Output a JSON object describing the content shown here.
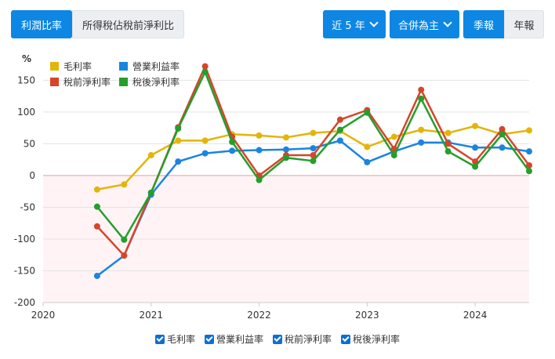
{
  "toolbar": {
    "tab_active": "利潤比率",
    "tab_inactive": "所得稅佔稅前淨利比",
    "range_label": "近 5 年",
    "basis_label": "合併為主",
    "quarterly_label": "季報",
    "annual_label": "年報"
  },
  "colors": {
    "accent": "#0d87e3",
    "zero_line": "#f0a5a5",
    "negative_fill": "#fff3f5"
  },
  "chart_data": {
    "type": "line",
    "unit_label": "%",
    "y_ticks": [
      "150",
      "100",
      "50",
      "0",
      "-50",
      "-100",
      "-150",
      "-200"
    ],
    "x_ticks": [
      "2020",
      "2021",
      "2022",
      "2023",
      "2024"
    ],
    "ylim": [
      -200,
      190
    ],
    "xlim": [
      2020.0,
      2024.5
    ],
    "legend_position": "top-left",
    "x": [
      2020.5,
      2020.75,
      2021.0,
      2021.25,
      2021.5,
      2021.75,
      2022.0,
      2022.25,
      2022.5,
      2022.75,
      2023.0,
      2023.25,
      2023.5,
      2023.75,
      2024.0,
      2024.25,
      2024.5
    ],
    "series": [
      {
        "name": "毛利率",
        "color": "#e3b50b",
        "values": [
          -22,
          -14,
          32,
          55,
          55,
          65,
          63,
          60,
          67,
          70,
          45,
          61,
          72,
          67,
          78,
          65,
          71
        ]
      },
      {
        "name": "營業利益率",
        "color": "#1a84e0",
        "values": [
          -158,
          -126,
          -30,
          22,
          35,
          39,
          40,
          41,
          43,
          55,
          21,
          38,
          52,
          52,
          44,
          44,
          38
        ]
      },
      {
        "name": "稅前淨利率",
        "color": "#d6452a",
        "values": [
          -80,
          -126,
          -27,
          76,
          172,
          61,
          0,
          32,
          32,
          88,
          103,
          42,
          135,
          50,
          22,
          73,
          16
        ]
      },
      {
        "name": "稅後淨利率",
        "color": "#259e2c",
        "values": [
          -49,
          -101,
          -27,
          74,
          163,
          53,
          -7,
          28,
          23,
          72,
          99,
          32,
          121,
          38,
          14,
          65,
          7
        ]
      }
    ]
  }
}
